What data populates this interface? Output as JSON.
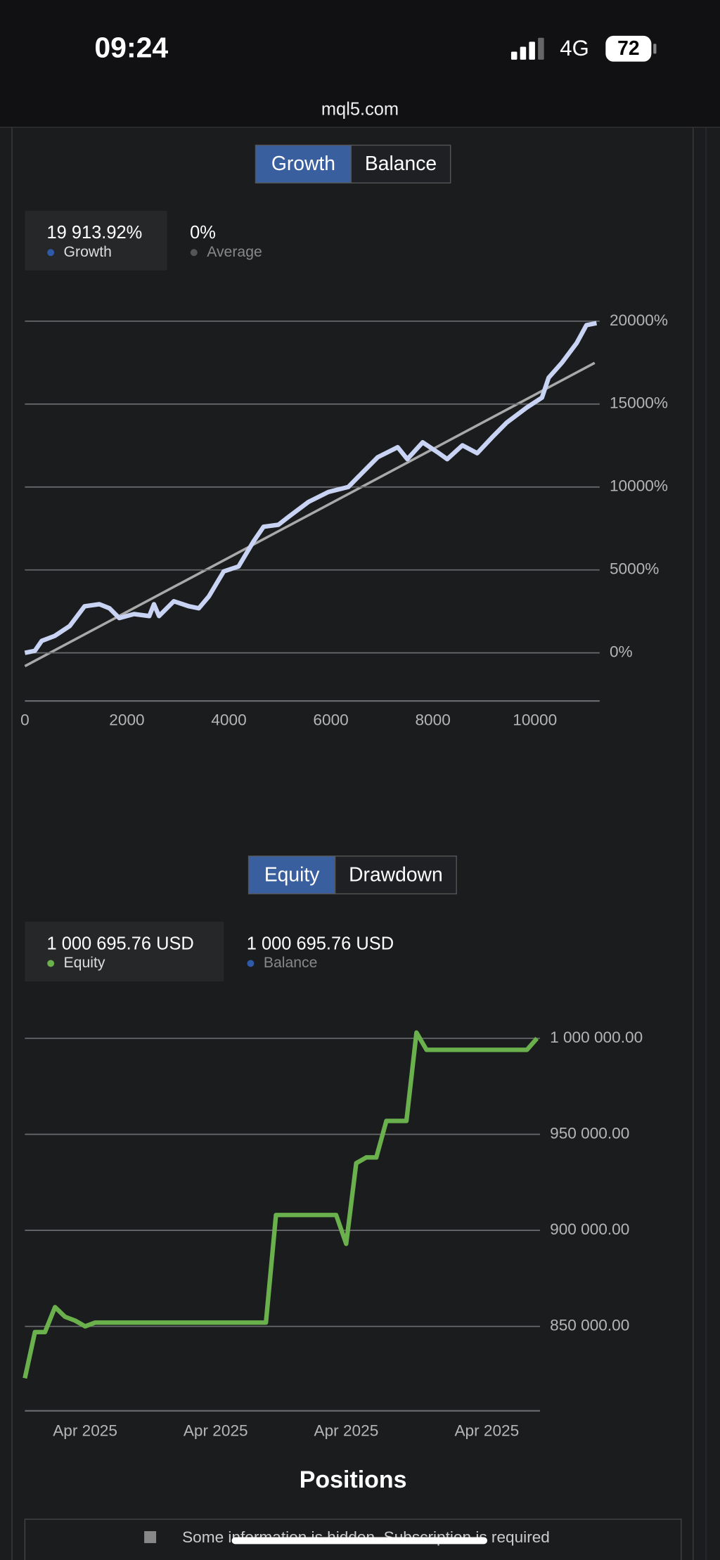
{
  "status_bar": {
    "time": "09:24",
    "network": "4G",
    "battery": "72"
  },
  "url": "mql5.com",
  "chart_data": [
    {
      "type": "line",
      "tabs": [
        "Growth",
        "Balance"
      ],
      "legend": [
        {
          "value_label": "19 913.92%",
          "name": "Growth",
          "color": "#2e5aa8"
        },
        {
          "value_label": "0%",
          "name": "Average",
          "color": "#555555"
        }
      ],
      "x": [
        0,
        195,
        330,
        585,
        880,
        1170,
        1460,
        1660,
        1850,
        2140,
        2440,
        2530,
        2630,
        2920,
        3220,
        3410,
        3610,
        3900,
        4190,
        4480,
        4680,
        4970,
        5170,
        5560,
        5950,
        6340,
        6630,
        6920,
        7310,
        7500,
        7800,
        8090,
        8280,
        8580,
        8870,
        9160,
        9450,
        9840,
        10140,
        10270,
        10530,
        10820,
        11010,
        11210
      ],
      "series": [
        {
          "color": "#c9d4f5",
          "values": [
            0,
            120,
            720,
            1020,
            1620,
            2810,
            2930,
            2690,
            2100,
            2340,
            2220,
            2930,
            2220,
            3110,
            2810,
            2690,
            3410,
            4910,
            5210,
            6710,
            7600,
            7720,
            8200,
            9100,
            9700,
            10000,
            10900,
            11800,
            12400,
            11680,
            12690,
            12100,
            11680,
            12510,
            12040,
            12990,
            13890,
            14790,
            15390,
            16590,
            17490,
            18680,
            19760,
            19880
          ]
        }
      ],
      "xlim": [
        0,
        11270
      ],
      "ylim": [
        -2900,
        20000
      ],
      "xticks": [
        0,
        2000,
        4000,
        6000,
        8000,
        10000
      ],
      "yticks": [
        {
          "value": 0,
          "label": "0%"
        },
        {
          "value": 5000,
          "label": "5000%"
        },
        {
          "value": 10000,
          "label": "10000%"
        },
        {
          "value": 15000,
          "label": "15000%"
        },
        {
          "value": 20000,
          "label": "20000%"
        }
      ],
      "grid": true
    },
    {
      "type": "line",
      "tabs": [
        "Equity",
        "Drawdown"
      ],
      "legend": [
        {
          "value_label": "1 000 695.76 USD",
          "name": "Equity",
          "color": "#6ab04c"
        },
        {
          "value_label": "1 000 695.76 USD",
          "name": "Balance",
          "color": "#2e5aa8"
        }
      ],
      "categories": [
        null,
        null,
        null,
        null,
        null,
        null,
        "Apr 2025",
        null,
        null,
        null,
        null,
        null,
        null,
        null,
        null,
        null,
        null,
        null,
        null,
        "Apr 2025",
        null,
        null,
        null,
        null,
        null,
        null,
        null,
        null,
        null,
        null,
        null,
        null,
        "Apr 2025",
        null,
        null,
        null,
        null,
        null,
        null,
        null,
        null,
        null,
        null,
        null,
        null,
        null,
        "Apr 2025",
        null,
        null,
        null,
        null,
        null
      ],
      "series": [
        {
          "color": "#6ab04c",
          "values": [
            823000,
            847000,
            847000,
            860000,
            855000,
            853000,
            850000,
            852000,
            852000,
            852000,
            852000,
            852000,
            852000,
            852000,
            852000,
            852000,
            852000,
            852000,
            852000,
            852000,
            852000,
            852000,
            852000,
            852000,
            852000,
            908000,
            908000,
            908000,
            908000,
            908000,
            908000,
            908000,
            893000,
            935000,
            938000,
            938000,
            957000,
            957000,
            957000,
            1003000,
            994000,
            994000,
            994000,
            994000,
            994000,
            994000,
            994000,
            994000,
            994000,
            994000,
            994000,
            1000000
          ]
        }
      ],
      "ylim": [
        806000,
        1010000
      ],
      "yticks": [
        {
          "value": 850000,
          "label": "850 000.00"
        },
        {
          "value": 900000,
          "label": "900 000.00"
        },
        {
          "value": 950000,
          "label": "950 000.00"
        },
        {
          "value": 1000000,
          "label": "1 000 000.00"
        }
      ],
      "grid": true
    }
  ],
  "positions": {
    "title": "Positions",
    "notice": "Some information is hidden. Subscription is required"
  }
}
